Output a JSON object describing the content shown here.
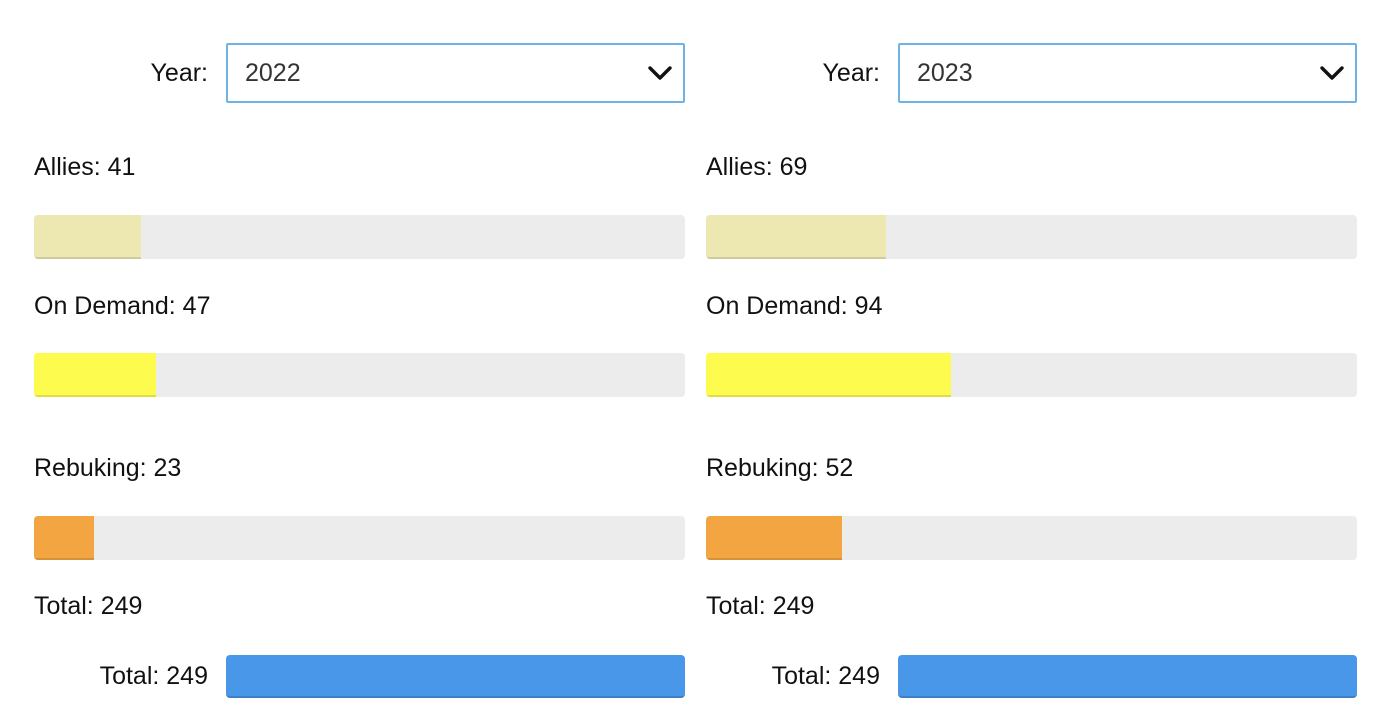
{
  "colors": {
    "allies": "#ede7b1",
    "on_demand": "#fdfc4e",
    "rebuking": "#f2a540",
    "total": "#4997e8",
    "track": "#ececec",
    "select_border": "#6fb3e6"
  },
  "panels": [
    {
      "year_label": "Year:",
      "year_value": "2022",
      "allies_label": "Allies: 41",
      "allies_fraction": 0.164,
      "on_demand_label": "On Demand: 47",
      "on_demand_fraction": 0.188,
      "rebuking_label": "Rebuking: 23",
      "rebuking_fraction": 0.092,
      "total_label": "Total: 249",
      "total_row_label": "Total: 249",
      "total_fraction": 1.0
    },
    {
      "year_label": "Year:",
      "year_value": "2023",
      "allies_label": "Allies: 69",
      "allies_fraction": 0.277,
      "on_demand_label": "On Demand: 94",
      "on_demand_fraction": 0.377,
      "rebuking_label": "Rebuking: 52",
      "rebuking_fraction": 0.209,
      "total_label": "Total: 249",
      "total_row_label": "Total: 249",
      "total_fraction": 1.0
    }
  ]
}
